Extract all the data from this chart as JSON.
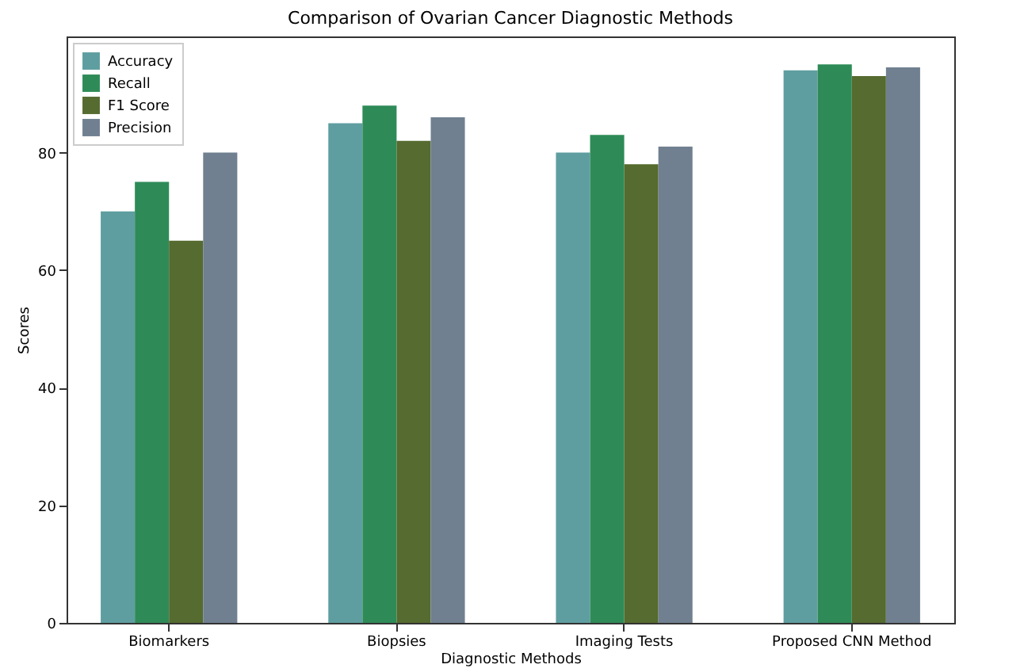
{
  "chart_data": {
    "type": "bar",
    "title": "Comparison of Ovarian Cancer Diagnostic Methods",
    "xlabel": "Diagnostic Methods",
    "ylabel": "Scores",
    "categories": [
      "Biomarkers",
      "Biopsies",
      "Imaging Tests",
      "Proposed CNN Method"
    ],
    "series": [
      {
        "name": "Accuracy",
        "color": "#5f9ea0",
        "values": [
          70,
          85,
          80,
          94
        ]
      },
      {
        "name": "Recall",
        "color": "#2e8b57",
        "values": [
          75,
          88,
          83,
          95
        ]
      },
      {
        "name": "F1 Score",
        "color": "#556b2f",
        "values": [
          65,
          82,
          78,
          93
        ]
      },
      {
        "name": "Precision",
        "color": "#708090",
        "values": [
          80,
          86,
          81,
          94.5
        ]
      }
    ],
    "ylim": [
      0,
      99.75
    ],
    "yticks": [
      0,
      20,
      40,
      60,
      80
    ],
    "grid": false,
    "legend": "top left"
  }
}
